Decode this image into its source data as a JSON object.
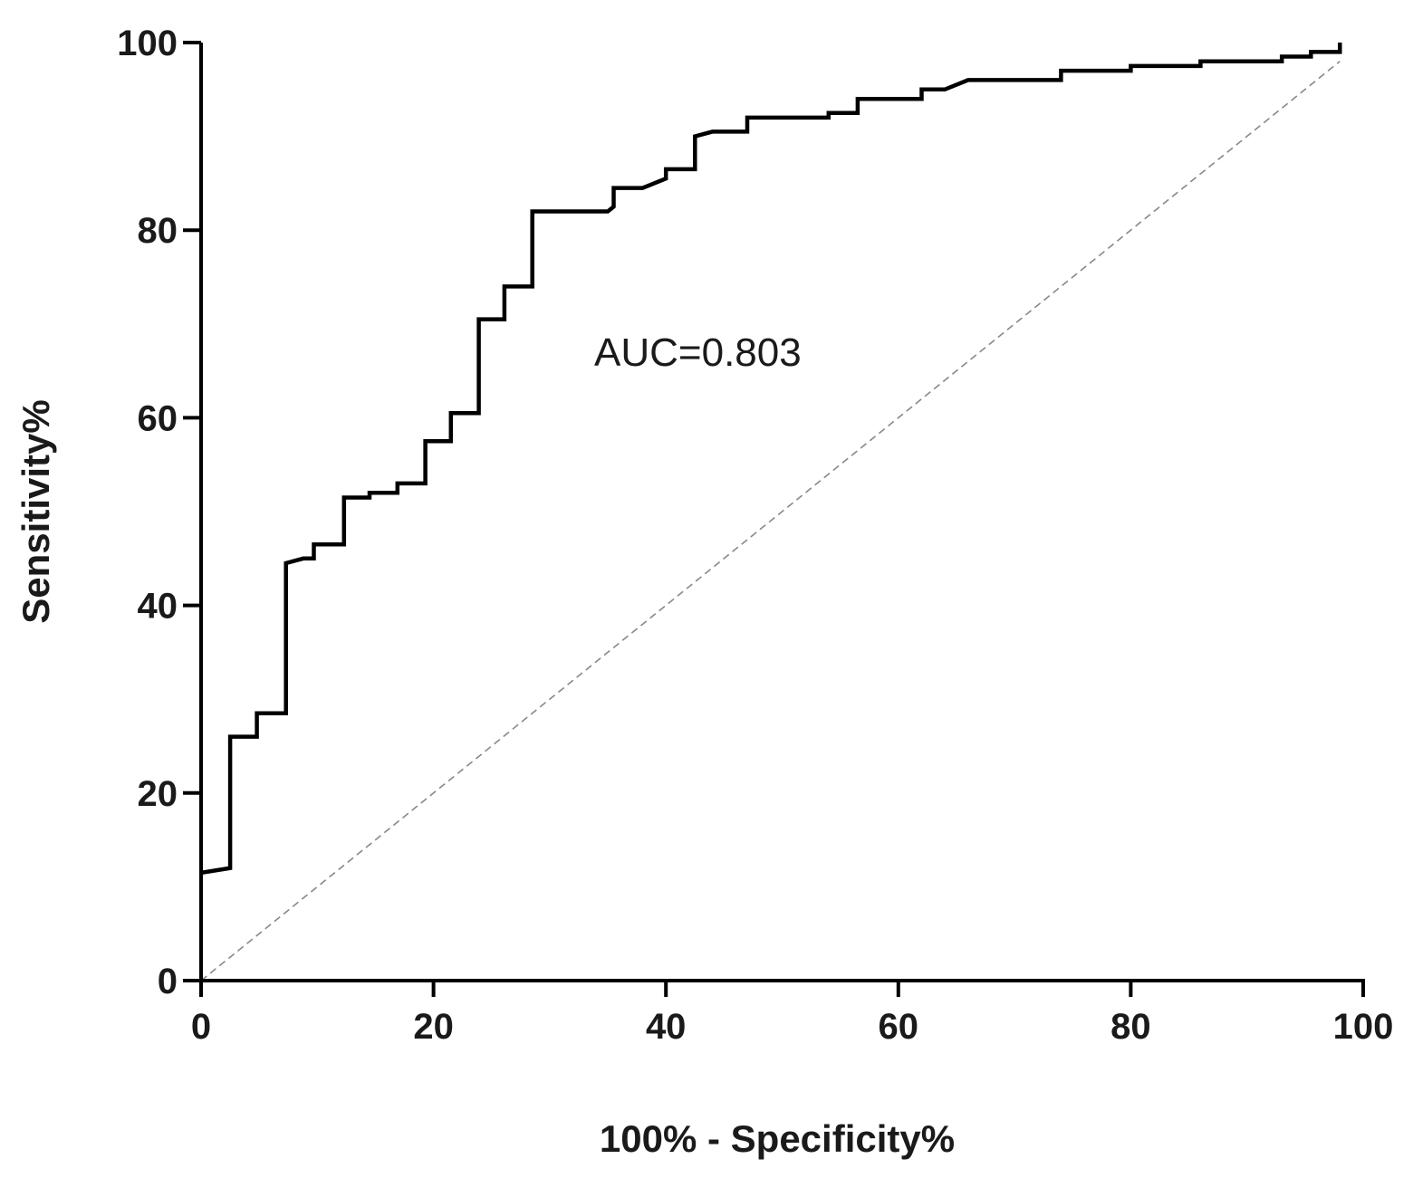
{
  "chart_data": {
    "type": "line",
    "title": "",
    "xlabel": "100%  - Specificity%",
    "ylabel": "Sensitivity%",
    "xlim": [
      0,
      100
    ],
    "ylim": [
      0,
      100
    ],
    "xticks": [
      "0",
      "20",
      "40",
      "60",
      "80",
      "100"
    ],
    "yticks": [
      "0",
      "20",
      "40",
      "60",
      "80",
      "100"
    ],
    "grid": false,
    "annotation": "AUC=0.803",
    "series": [
      {
        "style": "step",
        "color": "#000000",
        "x": [
          0,
          2.5,
          2.5,
          4.8,
          4.8,
          7.3,
          7.3,
          8.8,
          9.7,
          9.7,
          12.3,
          12.3,
          14.5,
          14.5,
          16.9,
          16.9,
          19.3,
          19.3,
          21.5,
          21.5,
          23.9,
          23.9,
          26.1,
          26.1,
          28.5,
          28.5,
          35.0,
          35.5,
          35.5,
          38.0,
          40.0,
          40.0,
          42.5,
          42.5,
          44.0,
          47.0,
          47.0,
          54.0,
          54.0,
          56.5,
          56.5,
          62.0,
          62.0,
          64.0,
          66.0,
          74.0,
          74.0,
          80.0,
          80.0,
          86.0,
          86.0,
          93.0,
          93.0,
          95.5,
          95.5,
          98.0,
          98.0
        ],
        "y": [
          11.5,
          12.0,
          26.0,
          26.0,
          28.5,
          28.5,
          44.5,
          45.0,
          45.0,
          46.5,
          46.5,
          51.5,
          51.5,
          52.0,
          52.0,
          53.0,
          53.0,
          57.5,
          57.5,
          60.5,
          60.5,
          70.5,
          70.5,
          74.0,
          74.0,
          82.0,
          82.0,
          82.5,
          84.5,
          84.5,
          85.5,
          86.5,
          86.5,
          90.0,
          90.5,
          90.5,
          92.0,
          92.0,
          92.5,
          92.5,
          94.0,
          94.0,
          95.0,
          95.0,
          96.0,
          96.0,
          97.0,
          97.0,
          97.5,
          97.5,
          98.0,
          98.0,
          98.5,
          98.5,
          99.0,
          99.0,
          100.0
        ]
      },
      {
        "style": "dashed",
        "color": "#888888",
        "x": [
          0,
          98
        ],
        "y": [
          0,
          98
        ]
      }
    ]
  }
}
